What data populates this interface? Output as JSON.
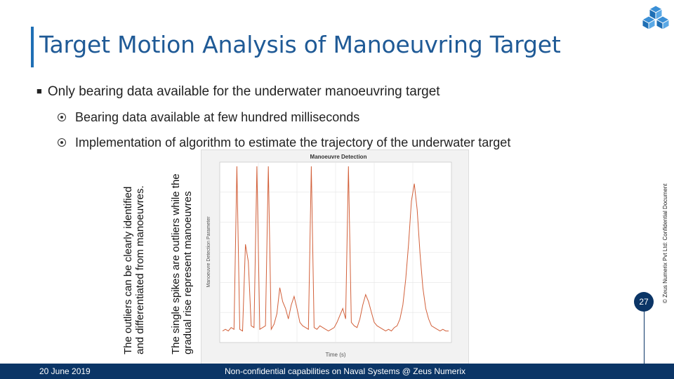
{
  "slide": {
    "title": "Target Motion Analysis of Manoeuvring Target",
    "bullet_main": "Only bearing data available for the underwater manoeuvring target",
    "sub_bullets": [
      "Bearing data available at few hundred milliseconds",
      "Implementation of algorithm to estimate the trajectory of the underwater target"
    ],
    "note_left": [
      "The  outliers  can  be  clearly  identified",
      "and differentiated from manoeuvres."
    ],
    "note_right": [
      "The single spikes are outliers while the",
      "gradual rise represent manoeuvres"
    ],
    "side_text": "© Zeus Numerix Pvt Ltd: Confidential Document",
    "footer_date": "20 June 2019",
    "footer_center": "Non-confidential capabilities on Naval Systems @ Zeus Numerix",
    "page_number": "27"
  },
  "colors": {
    "title": "#1f5a96",
    "accent_bar": "#1f6fb5",
    "footer": "#0b3566",
    "plot_line": "#d2603a"
  },
  "chart_data": {
    "type": "line",
    "title": "Manoeuvre Detection",
    "xlabel": "Time (s)",
    "ylabel": "Manoeuvre Detection Parameter",
    "grid": true,
    "series": [
      {
        "values": [
          0.05,
          0.06,
          0.05,
          0.07,
          0.06,
          1.0,
          0.06,
          0.05,
          0.55,
          0.45,
          0.08,
          0.07,
          1.0,
          0.06,
          0.07,
          0.08,
          1.0,
          0.06,
          0.09,
          0.15,
          0.3,
          0.22,
          0.18,
          0.12,
          0.2,
          0.25,
          0.18,
          0.1,
          0.08,
          0.07,
          0.06,
          1.0,
          0.07,
          0.06,
          0.08,
          0.07,
          0.06,
          0.05,
          0.06,
          0.07,
          0.1,
          0.14,
          0.18,
          0.12,
          1.0,
          0.1,
          0.08,
          0.07,
          0.12,
          0.2,
          0.26,
          0.22,
          0.16,
          0.1,
          0.08,
          0.07,
          0.06,
          0.05,
          0.06,
          0.05,
          0.07,
          0.08,
          0.12,
          0.2,
          0.35,
          0.55,
          0.8,
          0.9,
          0.75,
          0.5,
          0.3,
          0.18,
          0.12,
          0.08,
          0.07,
          0.06,
          0.05,
          0.06,
          0.05,
          0.05
        ]
      }
    ]
  }
}
